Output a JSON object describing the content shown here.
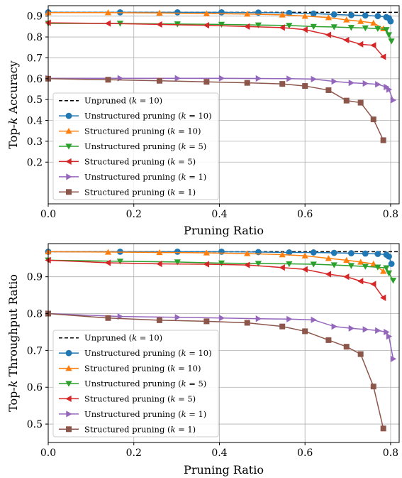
{
  "chart_data": [
    {
      "type": "line",
      "xlabel": "Pruning Ratio",
      "ylabel": "Top-k Accuracy",
      "xlim": [
        0.0,
        0.82
      ],
      "ylim": [
        0.0,
        0.95
      ],
      "xticks": [
        0.0,
        0.2,
        0.4,
        0.6,
        0.8
      ],
      "yticks": [
        0.2,
        0.3,
        0.4,
        0.5,
        0.6,
        0.7,
        0.8,
        0.9
      ],
      "grid": true,
      "legend_position": "lower-left",
      "series": [
        {
          "name": "Unpruned (k = 10)",
          "color": "#000000",
          "style": "dashed",
          "marker": "none",
          "x": [
            0.0,
            0.82
          ],
          "y": [
            0.918,
            0.918
          ]
        },
        {
          "name": "Unstructured pruning (k = 10)",
          "color": "#1f77b4",
          "marker": "circle",
          "x": [
            0.0,
            0.168,
            0.302,
            0.405,
            0.491,
            0.563,
            0.62,
            0.668,
            0.708,
            0.741,
            0.77,
            0.79,
            0.796,
            0.8
          ],
          "y": [
            0.918,
            0.918,
            0.918,
            0.918,
            0.917,
            0.915,
            0.912,
            0.908,
            0.905,
            0.903,
            0.9,
            0.895,
            0.89,
            0.875
          ]
        },
        {
          "name": "Structured pruning (k = 10)",
          "color": "#ff7f0e",
          "marker": "triangle-up",
          "x": [
            0.0,
            0.14,
            0.26,
            0.37,
            0.465,
            0.547,
            0.6,
            0.655,
            0.697,
            0.73,
            0.76,
            0.783
          ],
          "y": [
            0.917,
            0.917,
            0.915,
            0.912,
            0.91,
            0.906,
            0.9,
            0.893,
            0.882,
            0.875,
            0.867,
            0.84
          ]
        },
        {
          "name": "Unstructured pruning (k = 5)",
          "color": "#2ca02c",
          "marker": "triangle-down",
          "x": [
            0.0,
            0.168,
            0.302,
            0.405,
            0.491,
            0.563,
            0.62,
            0.668,
            0.708,
            0.741,
            0.77,
            0.79,
            0.796,
            0.802
          ],
          "y": [
            0.865,
            0.865,
            0.862,
            0.86,
            0.857,
            0.855,
            0.85,
            0.848,
            0.845,
            0.843,
            0.84,
            0.835,
            0.81,
            0.78
          ]
        },
        {
          "name": "Structured pruning (k = 5)",
          "color": "#d62728",
          "marker": "triangle-left",
          "x": [
            0.0,
            0.14,
            0.26,
            0.37,
            0.465,
            0.547,
            0.6,
            0.655,
            0.697,
            0.73,
            0.76,
            0.783
          ],
          "y": [
            0.868,
            0.865,
            0.86,
            0.856,
            0.85,
            0.845,
            0.835,
            0.81,
            0.785,
            0.765,
            0.76,
            0.705
          ]
        },
        {
          "name": "Unstructured pruning (k = 1)",
          "color": "#9467bd",
          "marker": "triangle-right",
          "x": [
            0.0,
            0.168,
            0.302,
            0.405,
            0.491,
            0.563,
            0.62,
            0.668,
            0.708,
            0.741,
            0.77,
            0.79,
            0.796,
            0.806
          ],
          "y": [
            0.602,
            0.602,
            0.602,
            0.602,
            0.601,
            0.6,
            0.598,
            0.587,
            0.58,
            0.577,
            0.573,
            0.56,
            0.548,
            0.497
          ]
        },
        {
          "name": "Structured pruning (k = 1)",
          "color": "#8c564b",
          "marker": "square",
          "x": [
            0.0,
            0.14,
            0.26,
            0.37,
            0.465,
            0.547,
            0.6,
            0.655,
            0.697,
            0.73,
            0.76,
            0.783
          ],
          "y": [
            0.6,
            0.595,
            0.59,
            0.585,
            0.58,
            0.575,
            0.565,
            0.545,
            0.495,
            0.485,
            0.405,
            0.305
          ]
        }
      ]
    },
    {
      "type": "line",
      "xlabel": "Pruning Ratio",
      "ylabel": "Top-k Throughput Ratio",
      "xlim": [
        0.0,
        0.82
      ],
      "ylim": [
        0.45,
        0.99
      ],
      "xticks": [
        0.0,
        0.2,
        0.4,
        0.6,
        0.8
      ],
      "yticks": [
        0.5,
        0.6,
        0.7,
        0.8,
        0.9
      ],
      "grid": true,
      "legend_position": "lower-left",
      "series": [
        {
          "name": "Unpruned (k = 10)",
          "color": "#000000",
          "style": "dashed",
          "marker": "none",
          "x": [
            0.0,
            0.82
          ],
          "y": [
            0.968,
            0.968
          ]
        },
        {
          "name": "Unstructured pruning (k = 10)",
          "color": "#1f77b4",
          "marker": "circle",
          "x": [
            0.0,
            0.168,
            0.302,
            0.405,
            0.491,
            0.563,
            0.62,
            0.668,
            0.708,
            0.741,
            0.77,
            0.79,
            0.796,
            0.802
          ],
          "y": [
            0.968,
            0.968,
            0.968,
            0.968,
            0.967,
            0.966,
            0.966,
            0.965,
            0.964,
            0.963,
            0.962,
            0.96,
            0.955,
            0.935
          ]
        },
        {
          "name": "Structured pruning (k = 10)",
          "color": "#ff7f0e",
          "marker": "triangle-up",
          "x": [
            0.0,
            0.14,
            0.26,
            0.37,
            0.465,
            0.547,
            0.6,
            0.655,
            0.697,
            0.73,
            0.76,
            0.783
          ],
          "y": [
            0.968,
            0.967,
            0.966,
            0.965,
            0.963,
            0.96,
            0.957,
            0.95,
            0.945,
            0.94,
            0.935,
            0.915
          ]
        },
        {
          "name": "Unstructured pruning (k = 5)",
          "color": "#2ca02c",
          "marker": "triangle-down",
          "x": [
            0.0,
            0.168,
            0.302,
            0.405,
            0.491,
            0.563,
            0.62,
            0.668,
            0.708,
            0.741,
            0.77,
            0.79,
            0.796,
            0.806
          ],
          "y": [
            0.945,
            0.942,
            0.94,
            0.937,
            0.936,
            0.935,
            0.934,
            0.932,
            0.93,
            0.928,
            0.926,
            0.924,
            0.91,
            0.89
          ]
        },
        {
          "name": "Structured pruning (k = 5)",
          "color": "#d62728",
          "marker": "triangle-left",
          "x": [
            0.0,
            0.14,
            0.26,
            0.37,
            0.465,
            0.547,
            0.6,
            0.655,
            0.697,
            0.73,
            0.76,
            0.783
          ],
          "y": [
            0.945,
            0.938,
            0.935,
            0.934,
            0.932,
            0.925,
            0.92,
            0.907,
            0.9,
            0.888,
            0.88,
            0.843
          ]
        },
        {
          "name": "Unstructured pruning (k = 1)",
          "color": "#9467bd",
          "marker": "triangle-right",
          "x": [
            0.0,
            0.168,
            0.302,
            0.405,
            0.491,
            0.563,
            0.62,
            0.668,
            0.708,
            0.741,
            0.77,
            0.79,
            0.796,
            0.806
          ],
          "y": [
            0.8,
            0.792,
            0.79,
            0.788,
            0.786,
            0.785,
            0.783,
            0.765,
            0.76,
            0.757,
            0.754,
            0.75,
            0.738,
            0.677
          ]
        },
        {
          "name": "Structured pruning (k = 1)",
          "color": "#8c564b",
          "marker": "square",
          "x": [
            0.0,
            0.14,
            0.26,
            0.37,
            0.465,
            0.547,
            0.6,
            0.655,
            0.697,
            0.73,
            0.76,
            0.783
          ],
          "y": [
            0.8,
            0.788,
            0.782,
            0.779,
            0.775,
            0.765,
            0.752,
            0.728,
            0.71,
            0.69,
            0.602,
            0.488
          ]
        }
      ]
    }
  ]
}
